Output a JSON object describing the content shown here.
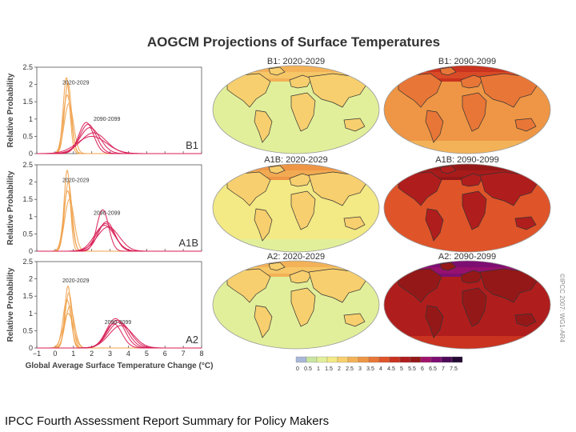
{
  "title": "AOGCM Projections of Surface Temperatures",
  "caption": "IPCC Fourth Assessment Report Summary for Policy Makers",
  "credit": "©IPCC 2007: WG1-AR4",
  "map_panels": [
    {
      "label": "B1: 2020-2029",
      "intensity": 0.12
    },
    {
      "label": "B1: 2090-2099",
      "intensity": 0.45
    },
    {
      "label": "A1B: 2020-2029",
      "intensity": 0.15
    },
    {
      "label": "A1B: 2090-2099",
      "intensity": 0.72
    },
    {
      "label": "A2: 2020-2029",
      "intensity": 0.14
    },
    {
      "label": "A2: 2090-2099",
      "intensity": 0.88
    }
  ],
  "colorbar": {
    "ticks": [
      "0",
      "0.5",
      "1",
      "1.5",
      "2",
      "2.5",
      "3",
      "3.5",
      "4",
      "4.5",
      "5",
      "5.5",
      "6",
      "6.5",
      "7",
      "7.5"
    ],
    "colors": [
      "#a9b8d8",
      "#c9e5a0",
      "#e2ef9a",
      "#f3e985",
      "#f7cf6e",
      "#f3b258",
      "#ee9645",
      "#e87637",
      "#df5429",
      "#c9331f",
      "#b01d1d",
      "#951818",
      "#a0136b",
      "#7d0e72",
      "#4d0a57",
      "#240a33"
    ]
  },
  "chart_data": {
    "type": "line",
    "xlabel": "Global Average Surface Temperature Change (°C)",
    "ylabel": "Relative Probability",
    "xlim": [
      -1,
      8
    ],
    "ylim": [
      0,
      2.5
    ],
    "xticks": [
      -1,
      0,
      1,
      2,
      3,
      4,
      5,
      6,
      7,
      8
    ],
    "yticks": [
      0,
      0.5,
      1,
      1.5,
      2,
      2.5
    ],
    "panels": [
      {
        "scenario": "B1",
        "annotations": [
          {
            "text": "2020-2029",
            "x": 0.4,
            "y": 2.0
          },
          {
            "text": "2090-2099",
            "x": 2.1,
            "y": 0.95
          }
        ],
        "series": [
          {
            "name": "2020-2029",
            "color": "#f0a14a",
            "curves": [
              {
                "mu": 0.62,
                "sigma": 0.18,
                "peak": 2.2
              },
              {
                "mu": 0.7,
                "sigma": 0.19,
                "peak": 2.05
              },
              {
                "mu": 0.66,
                "sigma": 0.22,
                "peak": 1.7
              },
              {
                "mu": 0.75,
                "sigma": 0.25,
                "peak": 1.45
              }
            ]
          },
          {
            "name": "2090-2099",
            "color": "#d81e55",
            "curves": [
              {
                "mu": 1.8,
                "sigma": 0.45,
                "peak": 0.85
              },
              {
                "mu": 1.9,
                "sigma": 0.55,
                "peak": 0.75
              },
              {
                "mu": 1.7,
                "sigma": 0.4,
                "peak": 0.9
              },
              {
                "mu": 2.1,
                "sigma": 0.7,
                "peak": 0.6
              },
              {
                "mu": 2.0,
                "sigma": 0.8,
                "peak": 0.5
              }
            ]
          }
        ]
      },
      {
        "scenario": "A1B",
        "annotations": [
          {
            "text": "2020-2029",
            "x": 0.4,
            "y": 2.0
          },
          {
            "text": "2090-2099",
            "x": 2.1,
            "y": 1.05
          }
        ],
        "series": [
          {
            "name": "2020-2029",
            "color": "#f0a14a",
            "curves": [
              {
                "mu": 0.66,
                "sigma": 0.17,
                "peak": 2.35
              },
              {
                "mu": 0.72,
                "sigma": 0.2,
                "peak": 2.0
              },
              {
                "mu": 0.68,
                "sigma": 0.22,
                "peak": 1.75
              },
              {
                "mu": 0.78,
                "sigma": 0.26,
                "peak": 1.5
              }
            ]
          },
          {
            "name": "2090-2099",
            "color": "#d81e55",
            "curves": [
              {
                "mu": 2.6,
                "sigma": 0.32,
                "peak": 1.2
              },
              {
                "mu": 2.8,
                "sigma": 0.45,
                "peak": 0.85
              },
              {
                "mu": 2.7,
                "sigma": 0.55,
                "peak": 0.75
              },
              {
                "mu": 2.9,
                "sigma": 0.6,
                "peak": 0.7
              },
              {
                "mu": 2.75,
                "sigma": 0.5,
                "peak": 0.8
              }
            ]
          }
        ]
      },
      {
        "scenario": "A2",
        "annotations": [
          {
            "text": "2020-2029",
            "x": 0.4,
            "y": 1.9
          },
          {
            "text": "2090-2099",
            "x": 2.7,
            "y": 0.7
          }
        ],
        "series": [
          {
            "name": "2020-2029",
            "color": "#f0a14a",
            "curves": [
              {
                "mu": 0.7,
                "sigma": 0.17,
                "peak": 1.8
              },
              {
                "mu": 0.75,
                "sigma": 0.2,
                "peak": 1.6
              },
              {
                "mu": 0.65,
                "sigma": 0.22,
                "peak": 1.4
              },
              {
                "mu": 0.8,
                "sigma": 0.25,
                "peak": 1.2
              },
              {
                "mu": 0.72,
                "sigma": 0.28,
                "peak": 1.0
              }
            ]
          },
          {
            "name": "2090-2099",
            "color": "#d81e55",
            "curves": [
              {
                "mu": 3.3,
                "sigma": 0.5,
                "peak": 0.85
              },
              {
                "mu": 3.4,
                "sigma": 0.55,
                "peak": 0.8
              },
              {
                "mu": 3.5,
                "sigma": 0.6,
                "peak": 0.75
              },
              {
                "mu": 3.2,
                "sigma": 0.45,
                "peak": 0.7
              },
              {
                "mu": 3.6,
                "sigma": 0.65,
                "peak": 0.65
              }
            ]
          }
        ]
      }
    ]
  }
}
